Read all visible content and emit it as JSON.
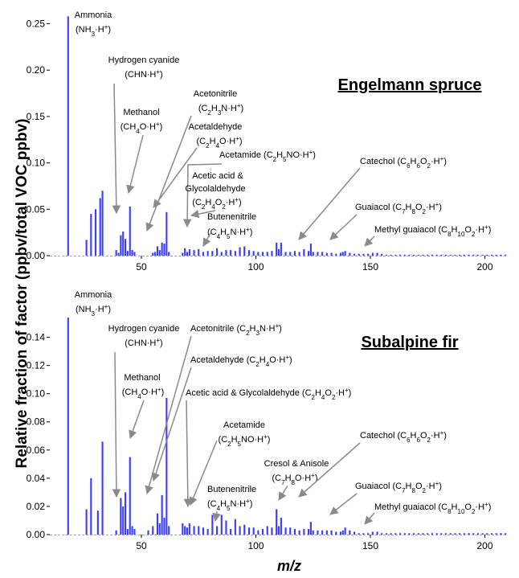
{
  "ylabel": "Relative fraction of factor (ppbv/total VOC ppbv)",
  "xlabel": "m/z",
  "chart_data": [
    {
      "type": "bar",
      "title": "Engelmann spruce",
      "xlim": [
        10,
        210
      ],
      "ylim": [
        0,
        0.26
      ],
      "yticks": [
        "0.00",
        "0.05",
        "0.10",
        "0.15",
        "0.20",
        "0.25"
      ],
      "xticks": [
        "50",
        "100",
        "150",
        "200"
      ],
      "bar_color": "#3b3bff",
      "x": [
        18,
        26,
        28,
        30,
        32,
        33,
        39,
        40,
        41,
        42,
        43,
        44,
        45,
        46,
        47,
        55,
        56,
        57,
        58,
        59,
        60,
        61,
        62,
        68,
        69,
        70,
        71,
        73,
        75,
        77,
        79,
        81,
        83,
        85,
        87,
        89,
        91,
        93,
        95,
        97,
        99,
        101,
        103,
        105,
        107,
        109,
        110,
        111,
        113,
        115,
        117,
        119,
        121,
        123,
        124,
        125,
        127,
        129,
        131,
        133,
        135,
        137,
        138,
        139,
        141,
        143,
        145,
        147,
        149,
        151,
        153,
        155,
        157,
        159,
        161,
        163,
        165,
        167,
        169,
        171,
        173,
        175,
        177,
        179,
        181,
        183,
        185,
        187,
        189,
        191,
        193,
        195,
        197,
        199,
        201,
        203,
        205,
        207,
        209
      ],
      "values": [
        0.258,
        0.017,
        0.045,
        0.05,
        0.062,
        0.07,
        0.006,
        0.003,
        0.022,
        0.026,
        0.018,
        0.005,
        0.053,
        0.006,
        0.004,
        0.003,
        0.004,
        0.01,
        0.006,
        0.014,
        0.013,
        0.047,
        0.004,
        0.003,
        0.008,
        0.004,
        0.007,
        0.006,
        0.007,
        0.004,
        0.005,
        0.005,
        0.008,
        0.004,
        0.006,
        0.006,
        0.005,
        0.009,
        0.01,
        0.006,
        0.005,
        0.004,
        0.004,
        0.004,
        0.005,
        0.014,
        0.007,
        0.014,
        0.004,
        0.004,
        0.005,
        0.004,
        0.007,
        0.005,
        0.013,
        0.004,
        0.004,
        0.004,
        0.003,
        0.003,
        0.002,
        0.003,
        0.004,
        0.005,
        0.003,
        0.002,
        0.002,
        0.002,
        0.002,
        0.003,
        0.003,
        0.002,
        0.001,
        0.001,
        0.001,
        0.001,
        0.001,
        0.001,
        0.001,
        0.001,
        0.001,
        0.001,
        0.001,
        0.001,
        0.001,
        0.001,
        0.001,
        0.001,
        0.001,
        0.001,
        0.001,
        0.001,
        0.001,
        0.001,
        0.001,
        0.001,
        0.001,
        0.001,
        0.001
      ],
      "annotations": [
        {
          "segs": [
            [
              "Ammonia"
            ],
            [
              "(NH",
              [
                "3"
              ],
              "·H",
              [
                "+"
              ],
              ")"
            ]
          ]
        },
        {
          "segs": [
            [
              "Hydrogen cyanide"
            ],
            [
              "(CHN·H",
              [
                "+"
              ],
              ")"
            ]
          ]
        },
        {
          "segs": [
            [
              "Methanol"
            ],
            [
              "(CH",
              [
                "4"
              ],
              "O·H",
              [
                "+"
              ],
              ")"
            ]
          ]
        },
        {
          "segs": [
            [
              "Acetonitrile"
            ],
            [
              "(C",
              [
                "2"
              ],
              "H",
              [
                "3"
              ],
              "N·H",
              [
                "+"
              ],
              ")"
            ]
          ]
        },
        {
          "segs": [
            [
              "Acetaldehyde"
            ],
            [
              "(C",
              [
                "2"
              ],
              "H",
              [
                "4"
              ],
              "O·H",
              [
                "+"
              ],
              ")"
            ]
          ]
        },
        {
          "segs": [
            [
              "Acetamide (C",
              [
                "2"
              ],
              "H",
              [
                "5"
              ],
              "NO·H",
              [
                "+"
              ],
              ")"
            ]
          ]
        },
        {
          "segs": [
            [
              "Acetic acid &"
            ],
            [
              "Glycolaldehyde"
            ],
            [
              "(C",
              [
                "2"
              ],
              "H",
              [
                "4"
              ],
              "O",
              [
                "2"
              ],
              "·H",
              [
                "+"
              ],
              ")"
            ]
          ]
        },
        {
          "segs": [
            [
              "Butenenitrile"
            ],
            [
              "(C",
              [
                "4"
              ],
              "H",
              [
                "5"
              ],
              "N·H",
              [
                "+"
              ],
              ")"
            ]
          ]
        },
        {
          "segs": [
            [
              "Catechol (C",
              [
                "6"
              ],
              "H",
              [
                "6"
              ],
              "O",
              [
                "2"
              ],
              "·H",
              [
                "+"
              ],
              ")"
            ]
          ]
        },
        {
          "segs": [
            [
              "Guaiacol (C",
              [
                "7"
              ],
              "H",
              [
                "8"
              ],
              "O",
              [
                "2"
              ],
              "·H",
              [
                "+"
              ],
              ")"
            ]
          ]
        },
        {
          "segs": [
            [
              "Methyl guaiacol (C",
              [
                "8"
              ],
              "H",
              [
                "10"
              ],
              "O",
              [
                "2"
              ],
              "·H",
              [
                "+"
              ],
              ")"
            ]
          ]
        }
      ]
    },
    {
      "type": "bar",
      "title": "Subalpine fir",
      "xlim": [
        10,
        210
      ],
      "ylim": [
        0,
        0.154
      ],
      "yticks": [
        "0.00",
        "0.02",
        "0.04",
        "0.06",
        "0.08",
        "0.10",
        "0.12",
        "0.14"
      ],
      "xticks": [
        "50",
        "100",
        "150",
        "200"
      ],
      "bar_color": "#3b3bff",
      "x": [
        18,
        26,
        28,
        31,
        33,
        39,
        41,
        42,
        43,
        44,
        45,
        46,
        47,
        53,
        55,
        57,
        58,
        59,
        60,
        61,
        62,
        68,
        69,
        70,
        71,
        73,
        75,
        77,
        79,
        81,
        83,
        85,
        87,
        89,
        91,
        93,
        95,
        97,
        99,
        101,
        103,
        105,
        107,
        109,
        110,
        111,
        113,
        115,
        117,
        119,
        121,
        123,
        124,
        125,
        127,
        129,
        131,
        133,
        135,
        137,
        138,
        139,
        141,
        143,
        145,
        147,
        149,
        151,
        153,
        155,
        157,
        159,
        161,
        163,
        165,
        167,
        169,
        171,
        173,
        175,
        177,
        179,
        181,
        183,
        185,
        187,
        189,
        191,
        193,
        195,
        197,
        199,
        201,
        203,
        205,
        207,
        209
      ],
      "values": [
        0.154,
        0.018,
        0.04,
        0.017,
        0.066,
        0.003,
        0.026,
        0.02,
        0.03,
        0.004,
        0.055,
        0.006,
        0.004,
        0.003,
        0.006,
        0.015,
        0.008,
        0.028,
        0.012,
        0.097,
        0.006,
        0.008,
        0.006,
        0.005,
        0.008,
        0.006,
        0.006,
        0.005,
        0.004,
        0.014,
        0.006,
        0.014,
        0.01,
        0.004,
        0.011,
        0.006,
        0.007,
        0.005,
        0.005,
        0.003,
        0.004,
        0.006,
        0.005,
        0.018,
        0.006,
        0.012,
        0.005,
        0.005,
        0.004,
        0.003,
        0.004,
        0.004,
        0.009,
        0.003,
        0.003,
        0.003,
        0.003,
        0.003,
        0.002,
        0.002,
        0.003,
        0.005,
        0.003,
        0.002,
        0.001,
        0.001,
        0.001,
        0.002,
        0.002,
        0.001,
        0.001,
        0.001,
        0.001,
        0.001,
        0.001,
        0.001,
        0.001,
        0.001,
        0.001,
        0.001,
        0.001,
        0.001,
        0.001,
        0.001,
        0.001,
        0.001,
        0.001,
        0.001,
        0.001,
        0.001,
        0.001,
        0.001,
        0.001,
        0.001,
        0.001,
        0.001,
        0.001
      ],
      "annotations": [
        {
          "segs": [
            [
              "Ammonia"
            ],
            [
              "(NH",
              [
                "3"
              ],
              "·H",
              [
                "+"
              ],
              ")"
            ]
          ]
        },
        {
          "segs": [
            [
              "Hydrogen cyanide"
            ],
            [
              "(CHN·H",
              [
                "+"
              ],
              ")"
            ]
          ]
        },
        {
          "segs": [
            [
              "Methanol"
            ],
            [
              "(CH",
              [
                "4"
              ],
              "O·H",
              [
                "+"
              ],
              ")"
            ]
          ]
        },
        {
          "segs": [
            [
              "Acetonitrile (C",
              [
                "2"
              ],
              "H",
              [
                "3"
              ],
              "N·H",
              [
                "+"
              ],
              ")"
            ]
          ]
        },
        {
          "segs": [
            [
              "Acetaldehyde (C",
              [
                "2"
              ],
              "H",
              [
                "4"
              ],
              "O·H",
              [
                "+"
              ],
              ")"
            ]
          ]
        },
        {
          "segs": [
            [
              "Acetic acid & Glycolaldehyde (C",
              [
                "2"
              ],
              "H",
              [
                "4"
              ],
              "O",
              [
                "2"
              ],
              "·H",
              [
                "+"
              ],
              ")"
            ]
          ]
        },
        {
          "segs": [
            [
              "Acetamide"
            ],
            [
              "(C",
              [
                "2"
              ],
              "H",
              [
                "5"
              ],
              "NO·H",
              [
                "+"
              ],
              ")"
            ]
          ]
        },
        {
          "segs": [
            [
              "Butenenitrile"
            ],
            [
              "(C",
              [
                "4"
              ],
              "H",
              [
                "5"
              ],
              "N·H",
              [
                "+"
              ],
              ")"
            ]
          ]
        },
        {
          "segs": [
            [
              "Cresol & Anisole"
            ],
            [
              "(C",
              [
                "7"
              ],
              "H",
              [
                "8"
              ],
              "O·H",
              [
                "+"
              ],
              ")"
            ]
          ]
        },
        {
          "segs": [
            [
              "Catechol (C",
              [
                "6"
              ],
              "H",
              [
                "6"
              ],
              "O",
              [
                "2"
              ],
              "·H",
              [
                "+"
              ],
              ")"
            ]
          ]
        },
        {
          "segs": [
            [
              "Guaiacol (C",
              [
                "7"
              ],
              "H",
              [
                "8"
              ],
              "O",
              [
                "2"
              ],
              "·H",
              [
                "+"
              ],
              ")"
            ]
          ]
        },
        {
          "segs": [
            [
              "Methyl guaiacol (C",
              [
                "8"
              ],
              "H",
              [
                "10"
              ],
              "O",
              [
                "2"
              ],
              "·H",
              [
                "+"
              ],
              ")"
            ]
          ]
        }
      ]
    }
  ]
}
